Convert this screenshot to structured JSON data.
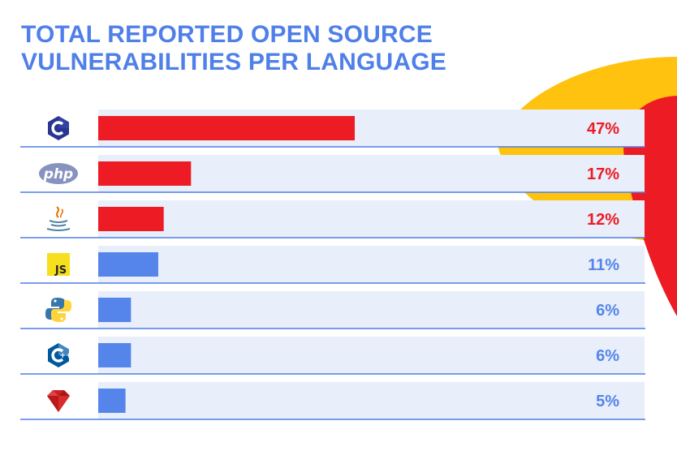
{
  "title": {
    "line1": "TOTAL REPORTED OPEN SOURCE",
    "line2": "VULNERABILITIES PER LANGUAGE"
  },
  "colors": {
    "title": "#4f7fe8",
    "top_bar": "#ed1c24",
    "other_bar": "#5585ea",
    "track": "#e8eefa",
    "divider": "#4f7fe8",
    "deco_yellow": "#ffc20e",
    "deco_red": "#ed1c24"
  },
  "chart_data": {
    "type": "bar",
    "orientation": "horizontal",
    "title": "TOTAL REPORTED OPEN SOURCE VULNERABILITIES PER LANGUAGE",
    "categories": [
      "C",
      "PHP",
      "Java",
      "JavaScript",
      "Python",
      "C++",
      "Ruby"
    ],
    "category_icons": [
      "c-logo-icon",
      "php-logo-icon",
      "java-logo-icon",
      "javascript-logo-icon",
      "python-logo-icon",
      "cpp-logo-icon",
      "ruby-logo-icon"
    ],
    "values": [
      47,
      17,
      12,
      11,
      6,
      6,
      5
    ],
    "labels": [
      "47%",
      "17%",
      "12%",
      "11%",
      "6%",
      "6%",
      "5%"
    ],
    "highlighted_count": 3,
    "xlim": [
      0,
      100
    ],
    "grid": false,
    "legend": "none"
  }
}
